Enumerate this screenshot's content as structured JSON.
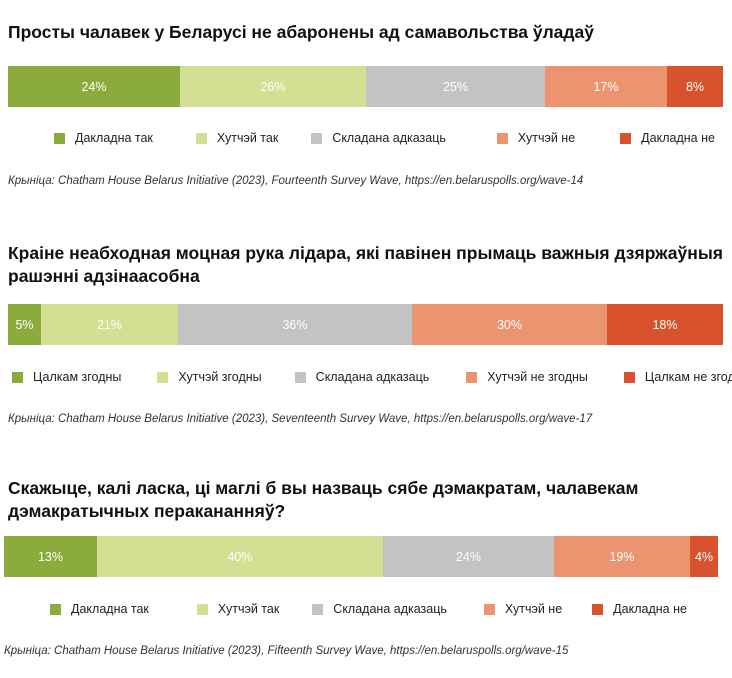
{
  "colors": {
    "dark_green": "#8bac3c",
    "light_green": "#d3e094",
    "grey": "#c3c3c3",
    "light_red": "#ec9470",
    "dark_red": "#d8532d"
  },
  "chart_data": [
    {
      "type": "bar",
      "orientation": "horizontal-stacked-100",
      "title": "Просты чалавек у Беларусі не абаронены ад самавольства ўладаў",
      "series": [
        {
          "name": "Дакладна так",
          "value": 24,
          "label": "24%",
          "color": "#8bac3c"
        },
        {
          "name": "Хутчэй так",
          "value": 26,
          "label": "26%",
          "color": "#d3e094"
        },
        {
          "name": "Складана адказаць",
          "value": 25,
          "label": "25%",
          "color": "#c3c3c3"
        },
        {
          "name": "Хутчэй не",
          "value": 17,
          "label": "17%",
          "color": "#ec9470"
        },
        {
          "name": "Дакладна не",
          "value": 8,
          "label": "8%",
          "color": "#d8532d"
        }
      ],
      "source": "Крыніца: Chatham House Belarus Initiative (2023), Fourteenth Survey Wave, https://en.belaruspolls.org/wave-14"
    },
    {
      "type": "bar",
      "orientation": "horizontal-stacked-100",
      "title": "Краіне неабходная моцная рука лідара, які павінен прымаць важныя дзяржаўныя рашэнні адзінаасобна",
      "series": [
        {
          "name": "Цалкам згодны",
          "value": 5,
          "label": "5%",
          "color": "#8bac3c"
        },
        {
          "name": "Хутчэй згодны",
          "value": 21,
          "label": "21%",
          "color": "#d3e094"
        },
        {
          "name": "Складана адказаць",
          "value": 36,
          "label": "36%",
          "color": "#c3c3c3"
        },
        {
          "name": "Хутчэй не згодны",
          "value": 30,
          "label": "30%",
          "color": "#ec9470"
        },
        {
          "name": "Цалкам не згодны",
          "value": 18,
          "label": "18%",
          "color": "#d8532d"
        }
      ],
      "source": "Крыніца: Chatham House Belarus Initiative (2023), Seventeenth Survey Wave, https://en.belaruspolls.org/wave-17"
    },
    {
      "type": "bar",
      "orientation": "horizontal-stacked-100",
      "title": "Скажыце, калі ласка, ці маглі б вы назваць сябе дэмакратам, чалавекам дэмакратычных перакананняў?",
      "series": [
        {
          "name": "Дакладна так",
          "value": 13,
          "label": "13%",
          "color": "#8bac3c"
        },
        {
          "name": "Хутчэй так",
          "value": 40,
          "label": "40%",
          "color": "#d3e094"
        },
        {
          "name": "Складана адказаць",
          "value": 24,
          "label": "24%",
          "color": "#c3c3c3"
        },
        {
          "name": "Хутчэй не",
          "value": 19,
          "label": "19%",
          "color": "#ec9470"
        },
        {
          "name": "Дакладна не",
          "value": 4,
          "label": "4%",
          "color": "#d8532d"
        }
      ],
      "source": "Крыніца: Chatham House Belarus Initiative (2023), Fifteenth Survey Wave, https://en.belaruspolls.org/wave-15"
    }
  ]
}
